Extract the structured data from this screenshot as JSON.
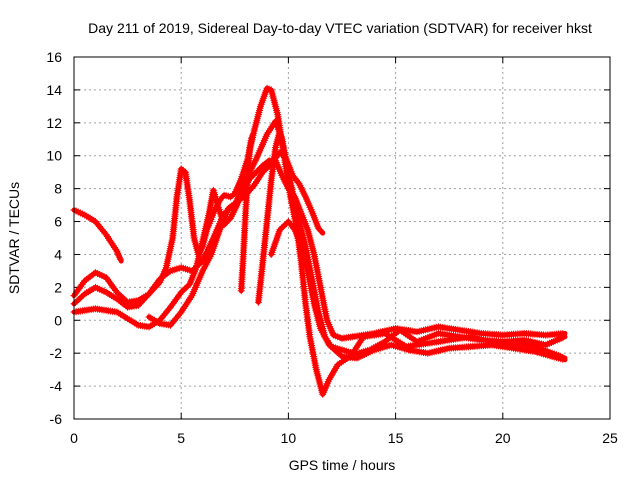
{
  "chart_data": {
    "type": "scatter",
    "title": "Day 211 of 2019, Sidereal Day-to-day VTEC variation (SDTVAR) for receiver hkst",
    "xlabel": "GPS time / hours",
    "ylabel": "SDTVAR / TECUs",
    "xlim": [
      0,
      25
    ],
    "ylim": [
      -6,
      16
    ],
    "xticks": [
      0,
      5,
      10,
      15,
      20,
      25
    ],
    "yticks": [
      -6,
      -4,
      -2,
      0,
      2,
      4,
      6,
      8,
      10,
      12,
      14,
      16
    ],
    "grid": true,
    "marker": "plus",
    "color": "#ff0000",
    "series": [
      {
        "name": "track-1",
        "points": [
          [
            0,
            6.7
          ],
          [
            0.5,
            6.4
          ],
          [
            1,
            6.0
          ],
          [
            1.5,
            5.2
          ],
          [
            2,
            4.2
          ],
          [
            2.2,
            3.6
          ]
        ]
      },
      {
        "name": "track-2",
        "points": [
          [
            0,
            1.5
          ],
          [
            0.5,
            2.4
          ],
          [
            1,
            2.9
          ],
          [
            1.5,
            2.6
          ],
          [
            2,
            1.7
          ],
          [
            2.5,
            1.1
          ],
          [
            3,
            1.2
          ],
          [
            3.5,
            1.6
          ],
          [
            4,
            2.3
          ],
          [
            4.3,
            3.2
          ],
          [
            4.6,
            5.0
          ],
          [
            4.8,
            7.5
          ],
          [
            5,
            9.2
          ],
          [
            5.2,
            9.0
          ],
          [
            5.4,
            7.2
          ],
          [
            5.6,
            5.0
          ],
          [
            5.8,
            4.0
          ],
          [
            6,
            4.5
          ],
          [
            6.2,
            5.5
          ],
          [
            6.5,
            6.5
          ],
          [
            6.8,
            7.3
          ],
          [
            7.0,
            7.6
          ],
          [
            7.3,
            7.5
          ],
          [
            7.5,
            7.7
          ],
          [
            7.8,
            8.6
          ],
          [
            8.1,
            9.8
          ],
          [
            8.4,
            11.5
          ],
          [
            8.7,
            13.0
          ],
          [
            9.0,
            14.1
          ],
          [
            9.2,
            14.0
          ],
          [
            9.5,
            12.5
          ],
          [
            9.8,
            10.0
          ],
          [
            10.1,
            7.5
          ],
          [
            10.4,
            5.5
          ],
          [
            10.6,
            3.5
          ],
          [
            10.8,
            1.0
          ],
          [
            11.0,
            -1.0
          ],
          [
            11.3,
            -3.0
          ],
          [
            11.6,
            -4.5
          ],
          [
            11.9,
            -3.6
          ],
          [
            12.3,
            -2.7
          ],
          [
            13,
            -2.1
          ],
          [
            13.8,
            -1.8
          ],
          [
            14.5,
            -1.3
          ],
          [
            15.2,
            -0.6
          ],
          [
            16,
            -1.3
          ],
          [
            17,
            -0.8
          ],
          [
            18,
            -1.0
          ],
          [
            19,
            -1.2
          ],
          [
            20,
            -1.3
          ],
          [
            21,
            -1.2
          ],
          [
            22,
            -1.5
          ],
          [
            22.9,
            -1.0
          ]
        ]
      },
      {
        "name": "track-3",
        "points": [
          [
            0,
            1.0
          ],
          [
            0.5,
            1.6
          ],
          [
            1,
            2.0
          ],
          [
            1.5,
            1.7
          ],
          [
            2,
            1.3
          ],
          [
            2.5,
            0.8
          ],
          [
            3,
            0.9
          ],
          [
            3.5,
            1.6
          ],
          [
            4,
            2.5
          ],
          [
            4.5,
            3.0
          ],
          [
            5,
            3.2
          ],
          [
            5.5,
            3.0
          ],
          [
            6,
            3.6
          ],
          [
            6.5,
            5.0
          ],
          [
            7.0,
            6.5
          ],
          [
            7.5,
            7.0
          ],
          [
            8.0,
            8.5
          ],
          [
            8.5,
            9.8
          ],
          [
            9.0,
            11.3
          ],
          [
            9.4,
            12.1
          ],
          [
            9.7,
            11.0
          ],
          [
            10.0,
            9.0
          ],
          [
            10.4,
            6.5
          ],
          [
            10.8,
            4.5
          ],
          [
            11.1,
            2.5
          ],
          [
            11.4,
            0.5
          ],
          [
            11.7,
            -1.0
          ],
          [
            12.0,
            -1.6
          ],
          [
            12.5,
            -1.8
          ],
          [
            13,
            -2.0
          ],
          [
            13.5,
            -1.0
          ],
          [
            14.5,
            -0.8
          ],
          [
            15.5,
            -1.6
          ],
          [
            16.5,
            -1.4
          ],
          [
            17.5,
            -1.2
          ],
          [
            18.5,
            -1.0
          ],
          [
            19.5,
            -1.3
          ],
          [
            20.5,
            -1.4
          ],
          [
            21.5,
            -1.6
          ],
          [
            22.3,
            -2.0
          ],
          [
            22.9,
            -2.3
          ]
        ]
      },
      {
        "name": "track-4",
        "points": [
          [
            0,
            0.5
          ],
          [
            0.5,
            0.6
          ],
          [
            1,
            0.7
          ],
          [
            1.5,
            0.6
          ],
          [
            2,
            0.5
          ],
          [
            2.5,
            0.1
          ],
          [
            3,
            -0.3
          ],
          [
            3.5,
            -0.4
          ],
          [
            4,
            0.0
          ],
          [
            4.5,
            0.8
          ],
          [
            5,
            1.7
          ],
          [
            5.4,
            2.2
          ],
          [
            5.7,
            3.2
          ],
          [
            6.0,
            4.8
          ],
          [
            6.3,
            6.5
          ],
          [
            6.5,
            7.9
          ],
          [
            6.7,
            7.0
          ],
          [
            7.0,
            5.8
          ],
          [
            7.3,
            6.2
          ],
          [
            7.6,
            7.0
          ],
          [
            7.9,
            8.0
          ],
          [
            8.2,
            8.6
          ],
          [
            8.5,
            9.0
          ],
          [
            8.8,
            9.4
          ],
          [
            9.1,
            9.7
          ],
          [
            9.4,
            9.7
          ],
          [
            9.7,
            8.8
          ],
          [
            10.0,
            8.0
          ],
          [
            10.3,
            7.5
          ],
          [
            10.6,
            6.5
          ],
          [
            10.9,
            5.5
          ],
          [
            11.2,
            4.0
          ],
          [
            11.5,
            2.0
          ],
          [
            11.8,
            0.0
          ],
          [
            12.1,
            -0.9
          ],
          [
            12.5,
            -1.1
          ],
          [
            13,
            -1.0
          ],
          [
            14,
            -0.8
          ],
          [
            15,
            -0.5
          ],
          [
            16,
            -0.7
          ],
          [
            17,
            -0.4
          ],
          [
            18,
            -0.6
          ],
          [
            19,
            -0.8
          ],
          [
            20,
            -0.9
          ],
          [
            21,
            -0.8
          ],
          [
            22,
            -0.9
          ],
          [
            22.9,
            -0.8
          ]
        ]
      },
      {
        "name": "track-5",
        "points": [
          [
            7.8,
            1.8
          ],
          [
            7.9,
            4.0
          ],
          [
            8.0,
            6.5
          ],
          [
            8.1,
            8.5
          ],
          [
            8.2,
            10.5
          ],
          [
            8.3,
            11.2
          ]
        ]
      },
      {
        "name": "track-6",
        "points": [
          [
            8.6,
            1.1
          ],
          [
            8.8,
            3.5
          ],
          [
            9.0,
            6.0
          ],
          [
            9.2,
            8.5
          ],
          [
            9.4,
            10.5
          ],
          [
            9.6,
            11.5
          ]
        ]
      },
      {
        "name": "track-7",
        "points": [
          [
            9.2,
            4.0
          ],
          [
            9.6,
            5.5
          ],
          [
            10.0,
            6.0
          ],
          [
            10.3,
            5.5
          ],
          [
            10.6,
            4.5
          ],
          [
            10.9,
            3.0
          ],
          [
            11.2,
            1.0
          ],
          [
            11.5,
            -0.5
          ],
          [
            11.9,
            -1.5
          ],
          [
            12.5,
            -2.2
          ],
          [
            13.2,
            -2.3
          ],
          [
            14,
            -1.8
          ],
          [
            14.8,
            -1.5
          ],
          [
            15.6,
            -1.8
          ],
          [
            16.5,
            -2.0
          ],
          [
            17.5,
            -1.7
          ],
          [
            18.5,
            -1.6
          ],
          [
            19.5,
            -1.5
          ],
          [
            20.5,
            -1.7
          ],
          [
            21.5,
            -1.9
          ],
          [
            22.3,
            -2.2
          ],
          [
            22.9,
            -2.4
          ]
        ]
      },
      {
        "name": "track-8",
        "points": [
          [
            3.5,
            0.2
          ],
          [
            4,
            -0.2
          ],
          [
            4.5,
            -0.3
          ],
          [
            5,
            0.5
          ],
          [
            5.5,
            1.5
          ],
          [
            6,
            3.0
          ],
          [
            6.4,
            4.0
          ],
          [
            6.8,
            5.5
          ],
          [
            7.2,
            6.8
          ],
          [
            7.6,
            7.2
          ],
          [
            8,
            7.6
          ],
          [
            8.4,
            8.2
          ],
          [
            8.8,
            9.0
          ],
          [
            9.2,
            9.5
          ],
          [
            9.6,
            10.2
          ],
          [
            9.9,
            9.8
          ],
          [
            10.2,
            8.8
          ],
          [
            10.5,
            8.3
          ],
          [
            10.8,
            7.5
          ],
          [
            11.1,
            6.6
          ],
          [
            11.4,
            5.6
          ],
          [
            11.6,
            5.3
          ]
        ]
      }
    ]
  }
}
